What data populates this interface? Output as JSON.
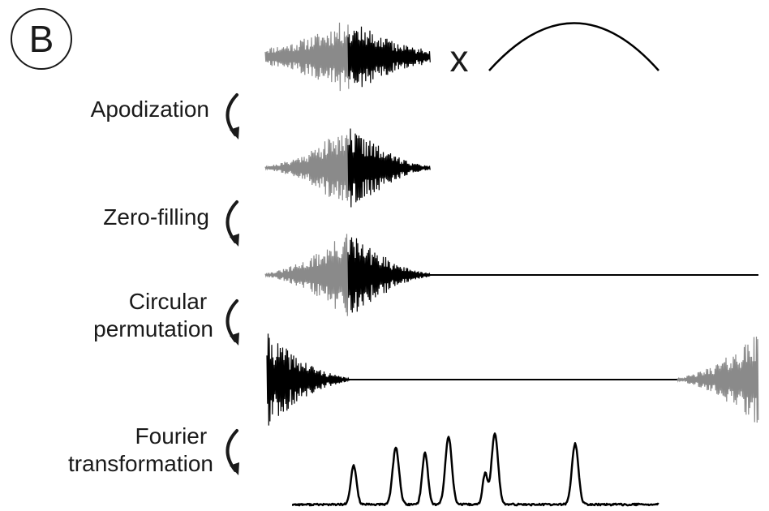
{
  "panel_label": "B",
  "multiply_symbol": "x",
  "steps": [
    {
      "lines": [
        "Apodization"
      ]
    },
    {
      "lines": [
        "Zero-filling"
      ]
    },
    {
      "lines": [
        "Circular",
        "permutation"
      ]
    },
    {
      "lines": [
        "Fourier",
        "transformation"
      ]
    }
  ],
  "colors": {
    "first_half": "#8a8a8a",
    "second_half": "#000000",
    "line": "#000000",
    "text": "#1a1a1a"
  }
}
